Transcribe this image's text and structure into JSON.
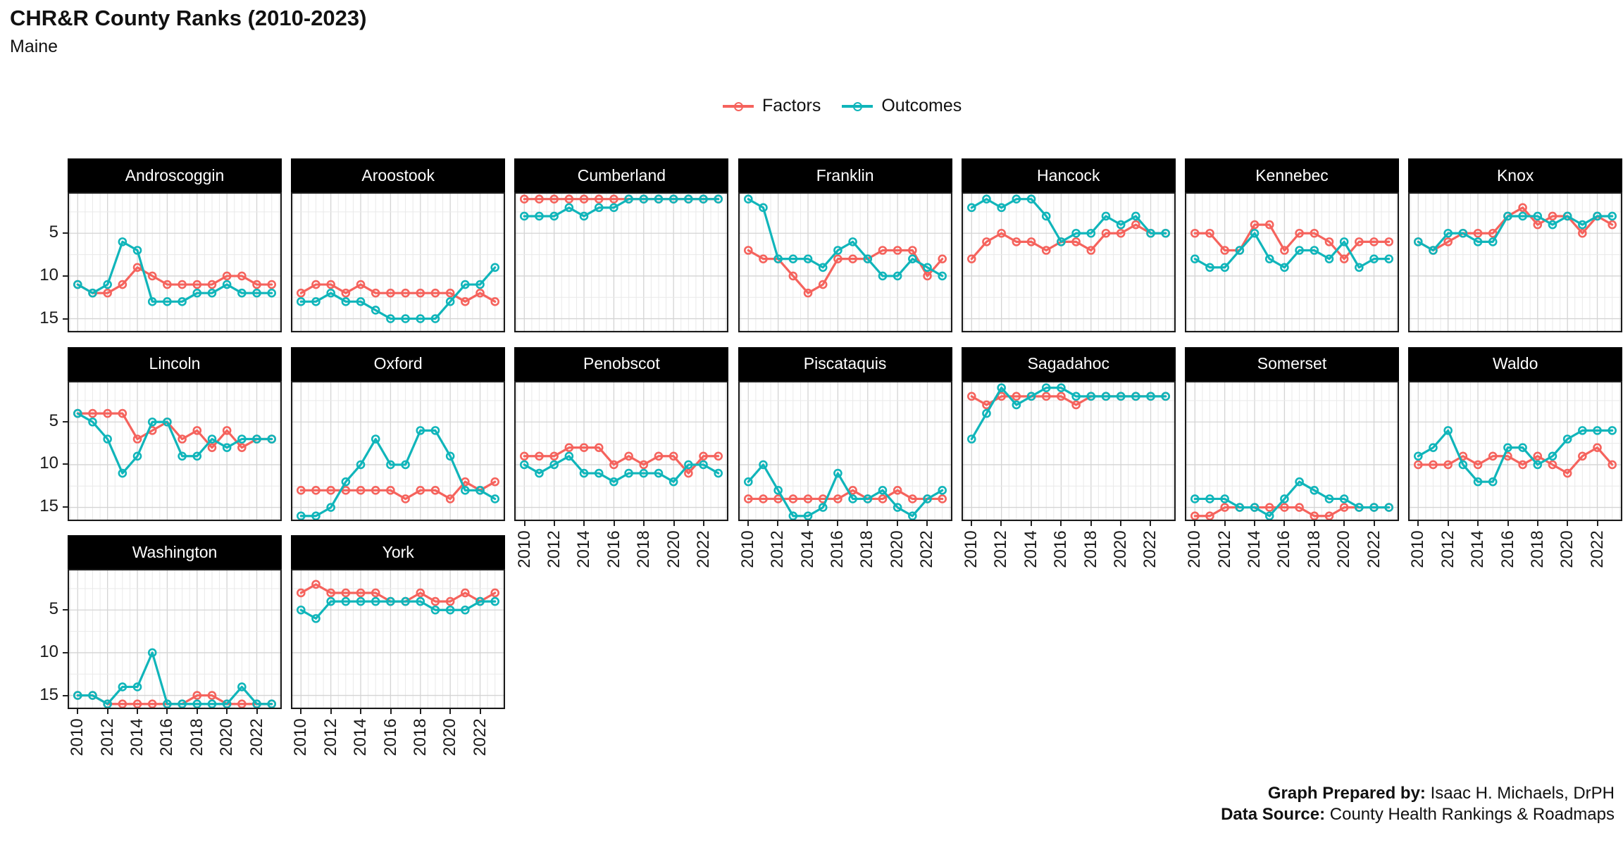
{
  "title": "CHR&R County Ranks (2010-2023)",
  "subtitle": "Maine",
  "legend": {
    "items": [
      {
        "label": "Factors",
        "color": "#F5635D"
      },
      {
        "label": "Outcomes",
        "color": "#10B5BA"
      }
    ]
  },
  "footer": {
    "prepared_by_label": "Graph Prepared by:",
    "prepared_by_value": "Isaac H. Michaels, DrPH",
    "source_label": "Data Source:",
    "source_value": "County Health Rankings & Roadmaps"
  },
  "chart_data": {
    "type": "line",
    "title": "CHR&R County Ranks (2010-2023)",
    "subtitle": "Maine",
    "x": [
      2010,
      2011,
      2012,
      2013,
      2014,
      2015,
      2016,
      2017,
      2018,
      2019,
      2020,
      2021,
      2022,
      2023
    ],
    "x_tick_labels": [
      "2010",
      "2012",
      "2014",
      "2016",
      "2018",
      "2020",
      "2022"
    ],
    "y_ticks": [
      5,
      10,
      15
    ],
    "y_tick_labels": [
      "5",
      "10",
      "15"
    ],
    "y_axis_reversed": true,
    "y_range": [
      0.2,
      16.6
    ],
    "grid": "on",
    "legend_position": "top",
    "series_names": [
      "Factors",
      "Outcomes"
    ],
    "colors": {
      "factors": "#F5635D",
      "outcomes": "#10B5BA"
    },
    "panels": [
      {
        "county": "Androscoggin",
        "factors": [
          11,
          12,
          12,
          11,
          9,
          10,
          11,
          11,
          11,
          11,
          10,
          10,
          11,
          11
        ],
        "outcomes": [
          11,
          12,
          11,
          6,
          7,
          13,
          13,
          13,
          12,
          12,
          11,
          12,
          12,
          12
        ]
      },
      {
        "county": "Aroostook",
        "factors": [
          12,
          11,
          11,
          12,
          11,
          12,
          12,
          12,
          12,
          12,
          12,
          13,
          12,
          13
        ],
        "outcomes": [
          13,
          13,
          12,
          13,
          13,
          14,
          15,
          15,
          15,
          15,
          13,
          11,
          11,
          9
        ]
      },
      {
        "county": "Cumberland",
        "factors": [
          1,
          1,
          1,
          1,
          1,
          1,
          1,
          1,
          1,
          1,
          1,
          1,
          1,
          1
        ],
        "outcomes": [
          3,
          3,
          3,
          2,
          3,
          2,
          2,
          1,
          1,
          1,
          1,
          1,
          1,
          1
        ]
      },
      {
        "county": "Franklin",
        "factors": [
          7,
          8,
          8,
          10,
          12,
          11,
          8,
          8,
          8,
          7,
          7,
          7,
          10,
          8
        ],
        "outcomes": [
          1,
          2,
          8,
          8,
          8,
          9,
          7,
          6,
          8,
          10,
          10,
          8,
          9,
          10
        ]
      },
      {
        "county": "Hancock",
        "factors": [
          8,
          6,
          5,
          6,
          6,
          7,
          6,
          6,
          7,
          5,
          5,
          4,
          5,
          5
        ],
        "outcomes": [
          2,
          1,
          2,
          1,
          1,
          3,
          6,
          5,
          5,
          3,
          4,
          3,
          5,
          5
        ]
      },
      {
        "county": "Kennebec",
        "factors": [
          5,
          5,
          7,
          7,
          4,
          4,
          7,
          5,
          5,
          6,
          8,
          6,
          6,
          6
        ],
        "outcomes": [
          8,
          9,
          9,
          7,
          5,
          8,
          9,
          7,
          7,
          8,
          6,
          9,
          8,
          8
        ]
      },
      {
        "county": "Knox",
        "factors": [
          6,
          7,
          6,
          5,
          5,
          5,
          3,
          2,
          4,
          3,
          3,
          5,
          3,
          4
        ],
        "outcomes": [
          6,
          7,
          5,
          5,
          6,
          6,
          3,
          3,
          3,
          4,
          3,
          4,
          3,
          3
        ]
      },
      {
        "county": "Lincoln",
        "factors": [
          4,
          4,
          4,
          4,
          7,
          6,
          5,
          7,
          6,
          8,
          6,
          8,
          7,
          7
        ],
        "outcomes": [
          4,
          5,
          7,
          11,
          9,
          5,
          5,
          9,
          9,
          7,
          8,
          7,
          7,
          7
        ]
      },
      {
        "county": "Oxford",
        "factors": [
          13,
          13,
          13,
          13,
          13,
          13,
          13,
          14,
          13,
          13,
          14,
          12,
          13,
          12
        ],
        "outcomes": [
          16,
          16,
          15,
          12,
          10,
          7,
          10,
          10,
          6,
          6,
          9,
          13,
          13,
          14
        ]
      },
      {
        "county": "Penobscot",
        "factors": [
          9,
          9,
          9,
          8,
          8,
          8,
          10,
          9,
          10,
          9,
          9,
          11,
          9,
          9
        ],
        "outcomes": [
          10,
          11,
          10,
          9,
          11,
          11,
          12,
          11,
          11,
          11,
          12,
          10,
          10,
          11
        ]
      },
      {
        "county": "Piscataquis",
        "factors": [
          14,
          14,
          14,
          14,
          14,
          14,
          14,
          13,
          14,
          14,
          13,
          14,
          14,
          14
        ],
        "outcomes": [
          12,
          10,
          13,
          16,
          16,
          15,
          11,
          14,
          14,
          13,
          15,
          16,
          14,
          13
        ]
      },
      {
        "county": "Sagadahoc",
        "factors": [
          2,
          3,
          2,
          2,
          2,
          2,
          2,
          3,
          2,
          2,
          2,
          2,
          2,
          2
        ],
        "outcomes": [
          7,
          4,
          1,
          3,
          2,
          1,
          1,
          2,
          2,
          2,
          2,
          2,
          2,
          2
        ]
      },
      {
        "county": "Somerset",
        "factors": [
          16,
          16,
          15,
          15,
          15,
          15,
          15,
          15,
          16,
          16,
          15,
          15,
          15,
          15
        ],
        "outcomes": [
          14,
          14,
          14,
          15,
          15,
          16,
          14,
          12,
          13,
          14,
          14,
          15,
          15,
          15
        ]
      },
      {
        "county": "Waldo",
        "factors": [
          10,
          10,
          10,
          9,
          10,
          9,
          9,
          10,
          9,
          10,
          11,
          9,
          8,
          10
        ],
        "outcomes": [
          9,
          8,
          6,
          10,
          12,
          12,
          8,
          8,
          10,
          9,
          7,
          6,
          6,
          6
        ]
      },
      {
        "county": "Washington",
        "factors": [
          15,
          15,
          16,
          16,
          16,
          16,
          16,
          16,
          15,
          15,
          16,
          16,
          16,
          16
        ],
        "outcomes": [
          15,
          15,
          16,
          14,
          14,
          10,
          16,
          16,
          16,
          16,
          16,
          14,
          16,
          16
        ]
      },
      {
        "county": "York",
        "factors": [
          3,
          2,
          3,
          3,
          3,
          3,
          4,
          4,
          3,
          4,
          4,
          3,
          4,
          3
        ],
        "outcomes": [
          5,
          6,
          4,
          4,
          4,
          4,
          4,
          4,
          4,
          5,
          5,
          5,
          4,
          4
        ]
      }
    ]
  }
}
